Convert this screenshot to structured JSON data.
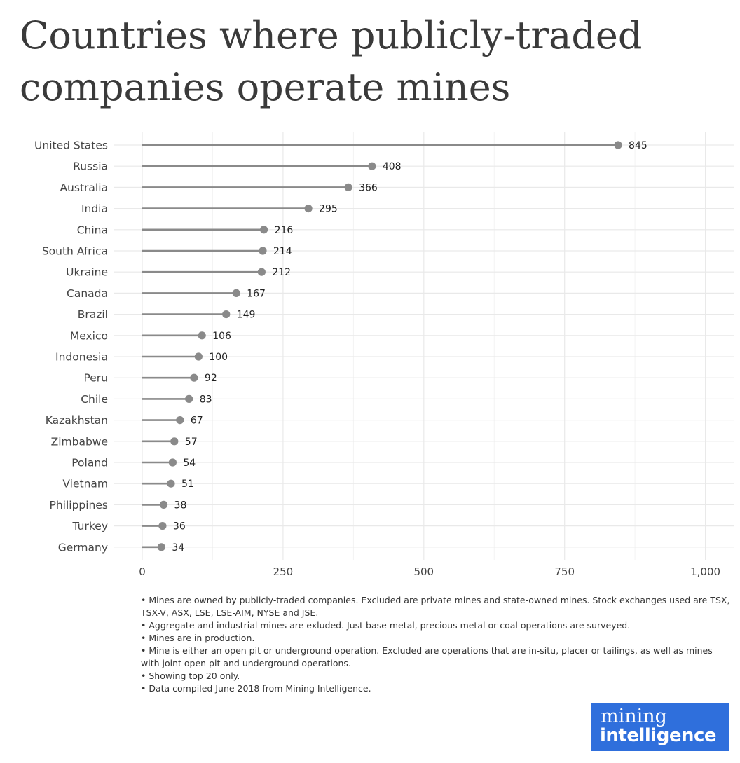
{
  "title": "Countries where publicly-traded companies operate mines",
  "chart_data": {
    "type": "lollipop",
    "title": "Countries where publicly-traded companies operate mines",
    "xlabel": "",
    "ylabel": "",
    "xlim": [
      0,
      1050
    ],
    "xticks": [
      0,
      250,
      500,
      750,
      1000
    ],
    "xtick_labels": [
      "0",
      "250",
      "500",
      "750",
      "1,000"
    ],
    "grid": true,
    "categories": [
      "United States",
      "Russia",
      "Australia",
      "India",
      "China",
      "South Africa",
      "Ukraine",
      "Canada",
      "Brazil",
      "Mexico",
      "Indonesia",
      "Peru",
      "Chile",
      "Kazakhstan",
      "Zimbabwe",
      "Poland",
      "Vietnam",
      "Philippines",
      "Turkey",
      "Germany"
    ],
    "values": [
      845,
      408,
      366,
      295,
      216,
      214,
      212,
      167,
      149,
      106,
      100,
      92,
      83,
      67,
      57,
      54,
      51,
      38,
      36,
      34
    ],
    "colors": {
      "mark": "#8a8a8a",
      "grid": "#e9e9e9",
      "text": "#333333"
    }
  },
  "notes": [
    "• Mines are owned by publicly-traded companies. Excluded are private mines and state-owned mines. Stock exchanges used are TSX, TSX-V, ASX, LSE, LSE-AIM, NYSE and JSE.",
    "• Aggregate and industrial mines are exluded. Just base metal, precious metal or coal operations are surveyed.",
    "• Mines are in production.",
    "• Mine is either an open pit or underground operation. Excluded are operations that are in-situ, placer or tailings, as well as mines with joint open pit and underground operations.",
    "• Showing top 20 only.",
    "• Data compiled June 2018 from Mining Intelligence."
  ],
  "logo": {
    "line1": "mining",
    "line2": "intelligence",
    "color": "#2f6fdc"
  }
}
